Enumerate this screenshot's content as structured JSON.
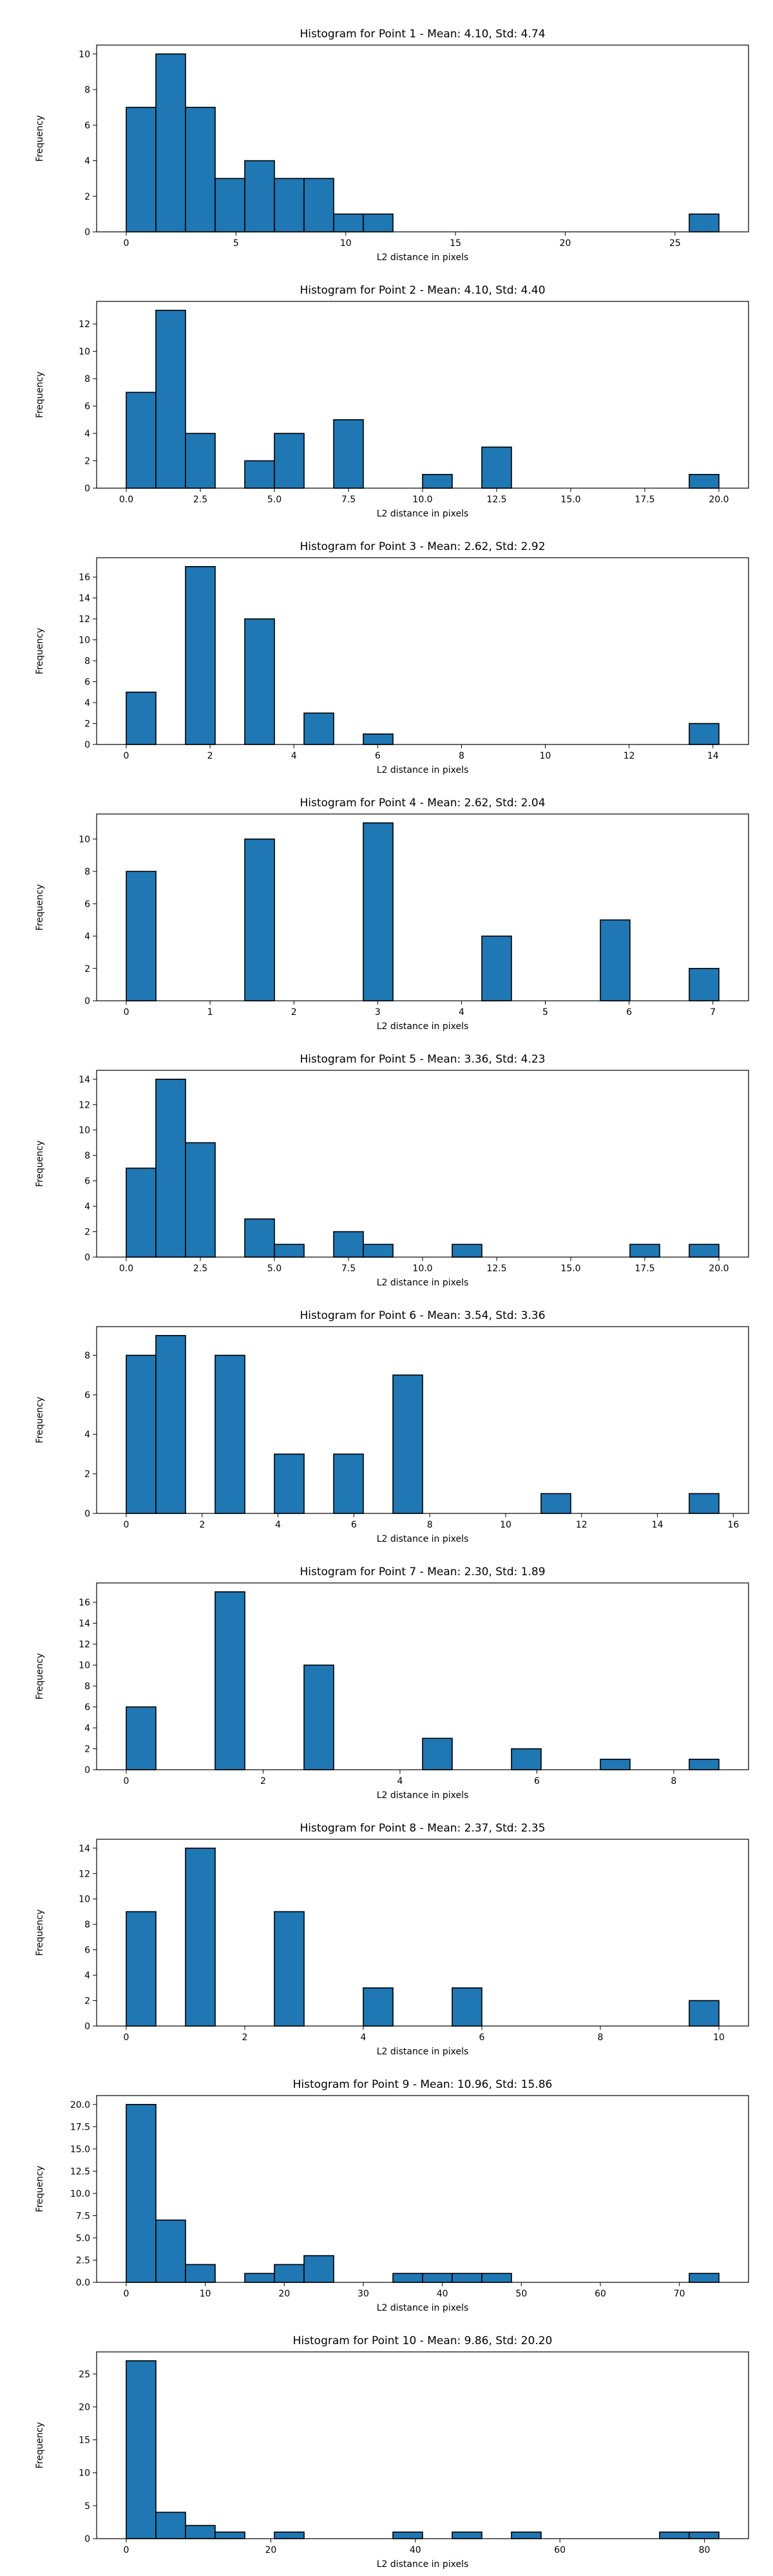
{
  "figure": {
    "background": "#ffffff",
    "bar_color": "#1f77b4",
    "edge_color": "#000000"
  },
  "chart_data": [
    {
      "type": "bar",
      "title": "Histogram for Point 1 - Mean: 4.10, Std: 4.74",
      "xlabel": "L2 distance in pixels",
      "ylabel": "Frequency",
      "bin_edges": [
        0,
        1.35,
        2.7,
        4.05,
        5.4,
        6.75,
        8.1,
        9.45,
        10.8,
        12.15,
        13.5,
        14.85,
        16.2,
        17.55,
        18.9,
        20.25,
        21.6,
        22.95,
        24.3,
        25.65,
        27.0
      ],
      "values": [
        7,
        10,
        7,
        3,
        4,
        3,
        3,
        1,
        1,
        0,
        0,
        0,
        0,
        0,
        0,
        0,
        0,
        0,
        0,
        1
      ],
      "xticks": [
        0,
        5,
        10,
        15,
        20,
        25
      ],
      "xtick_labels": [
        "0",
        "5",
        "10",
        "15",
        "20",
        "25"
      ],
      "yticks": [
        0,
        2,
        4,
        6,
        8,
        10
      ],
      "ytick_labels": [
        "0",
        "2",
        "4",
        "6",
        "8",
        "10"
      ],
      "xlim": [
        -1.35,
        28.35
      ],
      "ylim": [
        0,
        10.5
      ]
    },
    {
      "type": "bar",
      "title": "Histogram for Point 2 - Mean: 4.10, Std: 4.40",
      "xlabel": "L2 distance in pixels",
      "ylabel": "Frequency",
      "bin_edges": [
        0,
        1,
        2,
        3,
        4,
        5,
        6,
        7,
        8,
        9,
        10,
        11,
        12,
        13,
        14,
        15,
        16,
        17,
        18,
        19,
        20
      ],
      "values": [
        7,
        13,
        4,
        0,
        2,
        4,
        0,
        5,
        0,
        0,
        1,
        0,
        3,
        0,
        0,
        0,
        0,
        0,
        0,
        1
      ],
      "xticks": [
        0,
        2.5,
        5,
        7.5,
        10,
        12.5,
        15,
        17.5,
        20
      ],
      "xtick_labels": [
        "0.0",
        "2.5",
        "5.0",
        "7.5",
        "10.0",
        "12.5",
        "15.0",
        "17.5",
        "20.0"
      ],
      "yticks": [
        0,
        2,
        4,
        6,
        8,
        10,
        12
      ],
      "ytick_labels": [
        "0",
        "2",
        "4",
        "6",
        "8",
        "10",
        "12"
      ],
      "xlim": [
        -1,
        21
      ],
      "ylim": [
        0,
        13.65
      ]
    },
    {
      "type": "bar",
      "title": "Histogram for Point 3 - Mean: 2.62, Std: 2.92",
      "xlabel": "L2 distance in pixels",
      "ylabel": "Frequency",
      "bin_edges": [
        0,
        0.707,
        1.414,
        2.121,
        2.828,
        3.536,
        4.243,
        4.95,
        5.657,
        6.364,
        7.071,
        7.778,
        8.485,
        9.192,
        9.899,
        10.607,
        11.314,
        12.021,
        12.728,
        13.435,
        14.142
      ],
      "values": [
        5,
        0,
        17,
        0,
        12,
        0,
        3,
        0,
        1,
        0,
        0,
        0,
        0,
        0,
        0,
        0,
        0,
        0,
        0,
        2
      ],
      "xticks": [
        0,
        2,
        4,
        6,
        8,
        10,
        12,
        14
      ],
      "xtick_labels": [
        "0",
        "2",
        "4",
        "6",
        "8",
        "10",
        "12",
        "14"
      ],
      "yticks": [
        0,
        2,
        4,
        6,
        8,
        10,
        12,
        14,
        16
      ],
      "ytick_labels": [
        "0",
        "2",
        "4",
        "6",
        "8",
        "10",
        "12",
        "14",
        "16"
      ],
      "xlim": [
        -0.707,
        14.849
      ],
      "ylim": [
        0,
        17.85
      ]
    },
    {
      "type": "bar",
      "title": "Histogram for Point 4 - Mean: 2.62, Std: 2.04",
      "xlabel": "L2 distance in pixels",
      "ylabel": "Frequency",
      "bin_edges": [
        0,
        0.354,
        0.707,
        1.061,
        1.414,
        1.768,
        2.121,
        2.475,
        2.828,
        3.182,
        3.536,
        3.889,
        4.243,
        4.596,
        4.95,
        5.303,
        5.657,
        6.01,
        6.364,
        6.718,
        7.071
      ],
      "values": [
        8,
        0,
        0,
        0,
        10,
        0,
        0,
        0,
        11,
        0,
        0,
        0,
        4,
        0,
        0,
        0,
        5,
        0,
        0,
        2
      ],
      "xticks": [
        0,
        1,
        2,
        3,
        4,
        5,
        6,
        7
      ],
      "xtick_labels": [
        "0",
        "1",
        "2",
        "3",
        "4",
        "5",
        "6",
        "7"
      ],
      "yticks": [
        0,
        2,
        4,
        6,
        8,
        10
      ],
      "ytick_labels": [
        "0",
        "2",
        "4",
        "6",
        "8",
        "10"
      ],
      "xlim": [
        -0.354,
        7.425
      ],
      "ylim": [
        0,
        11.55
      ]
    },
    {
      "type": "bar",
      "title": "Histogram for Point 5 - Mean: 3.36, Std: 4.23",
      "xlabel": "L2 distance in pixels",
      "ylabel": "Frequency",
      "bin_edges": [
        0,
        1,
        2,
        3,
        4,
        5,
        6,
        7,
        8,
        9,
        10,
        11,
        12,
        13,
        14,
        15,
        16,
        17,
        18,
        19,
        20
      ],
      "values": [
        7,
        14,
        9,
        0,
        3,
        1,
        0,
        2,
        1,
        0,
        0,
        1,
        0,
        0,
        0,
        0,
        0,
        1,
        0,
        1
      ],
      "xticks": [
        0,
        2.5,
        5,
        7.5,
        10,
        12.5,
        15,
        17.5,
        20
      ],
      "xtick_labels": [
        "0.0",
        "2.5",
        "5.0",
        "7.5",
        "10.0",
        "12.5",
        "15.0",
        "17.5",
        "20.0"
      ],
      "yticks": [
        0,
        2,
        4,
        6,
        8,
        10,
        12,
        14
      ],
      "ytick_labels": [
        "0",
        "2",
        "4",
        "6",
        "8",
        "10",
        "12",
        "14"
      ],
      "xlim": [
        -1,
        21
      ],
      "ylim": [
        0,
        14.7
      ]
    },
    {
      "type": "bar",
      "title": "Histogram for Point 6 - Mean: 3.54, Std: 3.36",
      "xlabel": "L2 distance in pixels",
      "ylabel": "Frequency",
      "bin_edges": [
        0,
        0.781,
        1.562,
        2.343,
        3.124,
        3.905,
        4.686,
        5.467,
        6.248,
        7.029,
        7.81,
        8.591,
        9.372,
        10.153,
        10.934,
        11.715,
        12.496,
        13.277,
        14.058,
        14.839,
        15.62
      ],
      "values": [
        8,
        9,
        0,
        8,
        0,
        3,
        0,
        3,
        0,
        7,
        0,
        0,
        0,
        0,
        1,
        0,
        0,
        0,
        0,
        1
      ],
      "xticks": [
        0,
        2,
        4,
        6,
        8,
        10,
        12,
        14,
        16
      ],
      "xtick_labels": [
        "0",
        "2",
        "4",
        "6",
        "8",
        "10",
        "12",
        "14",
        "16"
      ],
      "yticks": [
        0,
        2,
        4,
        6,
        8
      ],
      "ytick_labels": [
        "0",
        "2",
        "4",
        "6",
        "8"
      ],
      "xlim": [
        -0.781,
        16.401
      ],
      "ylim": [
        0,
        9.45
      ]
    },
    {
      "type": "bar",
      "title": "Histogram for Point 7 - Mean: 2.30, Std: 1.89",
      "xlabel": "L2 distance in pixels",
      "ylabel": "Frequency",
      "bin_edges": [
        0,
        0.433,
        0.866,
        1.299,
        1.732,
        2.165,
        2.598,
        3.031,
        3.464,
        3.897,
        4.33,
        4.763,
        5.196,
        5.629,
        6.062,
        6.495,
        6.928,
        7.361,
        7.794,
        8.227,
        8.66
      ],
      "values": [
        6,
        0,
        0,
        17,
        0,
        0,
        10,
        0,
        0,
        0,
        3,
        0,
        0,
        2,
        0,
        0,
        1,
        0,
        0,
        1
      ],
      "xticks": [
        0,
        2,
        4,
        6,
        8
      ],
      "xtick_labels": [
        "0",
        "2",
        "4",
        "6",
        "8"
      ],
      "yticks": [
        0,
        2,
        4,
        6,
        8,
        10,
        12,
        14,
        16
      ],
      "ytick_labels": [
        "0",
        "2",
        "4",
        "6",
        "8",
        "10",
        "12",
        "14",
        "16"
      ],
      "xlim": [
        -0.433,
        9.093
      ],
      "ylim": [
        0,
        17.85
      ]
    },
    {
      "type": "bar",
      "title": "Histogram for Point 8 - Mean: 2.37, Std: 2.35",
      "xlabel": "L2 distance in pixels",
      "ylabel": "Frequency",
      "bin_edges": [
        0,
        0.5,
        1.0,
        1.5,
        2.0,
        2.5,
        3.0,
        3.5,
        4.0,
        4.5,
        5.0,
        5.5,
        6.0,
        6.5,
        7.0,
        7.5,
        8.0,
        8.5,
        9.0,
        9.5,
        10.0
      ],
      "values": [
        9,
        0,
        14,
        0,
        0,
        9,
        0,
        0,
        3,
        0,
        0,
        3,
        0,
        0,
        0,
        0,
        0,
        0,
        0,
        2
      ],
      "xticks": [
        0,
        2,
        4,
        6,
        8,
        10
      ],
      "xtick_labels": [
        "0",
        "2",
        "4",
        "6",
        "8",
        "10"
      ],
      "yticks": [
        0,
        2,
        4,
        6,
        8,
        10,
        12,
        14
      ],
      "ytick_labels": [
        "0",
        "2",
        "4",
        "6",
        "8",
        "10",
        "12",
        "14"
      ],
      "xlim": [
        -0.5,
        10.5
      ],
      "ylim": [
        0,
        14.7
      ]
    },
    {
      "type": "bar",
      "title": "Histogram for Point 9 - Mean: 10.96, Std: 15.86",
      "xlabel": "L2 distance in pixels",
      "ylabel": "Frequency",
      "bin_edges": [
        0,
        3.75,
        7.5,
        11.25,
        15.0,
        18.75,
        22.5,
        26.25,
        30.0,
        33.75,
        37.5,
        41.25,
        45.0,
        48.75,
        52.5,
        56.25,
        60.0,
        63.75,
        67.5,
        71.25,
        75.0
      ],
      "values": [
        20,
        7,
        2,
        0,
        1,
        2,
        3,
        0,
        0,
        1,
        1,
        1,
        1,
        0,
        0,
        0,
        0,
        0,
        0,
        1
      ],
      "xticks": [
        0,
        10,
        20,
        30,
        40,
        50,
        60,
        70
      ],
      "xtick_labels": [
        "0",
        "10",
        "20",
        "30",
        "40",
        "50",
        "60",
        "70"
      ],
      "yticks": [
        0,
        2.5,
        5,
        7.5,
        10,
        12.5,
        15,
        17.5,
        20
      ],
      "ytick_labels": [
        "0.0",
        "2.5",
        "5.0",
        "7.5",
        "10.0",
        "12.5",
        "15.0",
        "17.5",
        "20.0"
      ],
      "xlim": [
        -3.75,
        78.75
      ],
      "ylim": [
        0,
        21
      ]
    },
    {
      "type": "bar",
      "title": "Histogram for Point 10 - Mean: 9.86, Std: 20.20",
      "xlabel": "L2 distance in pixels",
      "ylabel": "Frequency",
      "bin_edges": [
        0,
        4.1,
        8.2,
        12.3,
        16.4,
        20.5,
        24.6,
        28.7,
        32.8,
        36.9,
        41.0,
        45.1,
        49.2,
        53.3,
        57.4,
        61.5,
        65.6,
        69.7,
        73.8,
        77.9,
        82.0
      ],
      "values": [
        27,
        4,
        2,
        1,
        0,
        1,
        0,
        0,
        0,
        1,
        0,
        1,
        0,
        1,
        0,
        0,
        0,
        0,
        1,
        1
      ],
      "xticks": [
        0,
        20,
        40,
        60,
        80
      ],
      "xtick_labels": [
        "0",
        "20",
        "40",
        "60",
        "80"
      ],
      "yticks": [
        0,
        5,
        10,
        15,
        20,
        25
      ],
      "ytick_labels": [
        "0",
        "5",
        "10",
        "15",
        "20",
        "25"
      ],
      "xlim": [
        -4.1,
        86.1
      ],
      "ylim": [
        0,
        28.35
      ]
    }
  ]
}
